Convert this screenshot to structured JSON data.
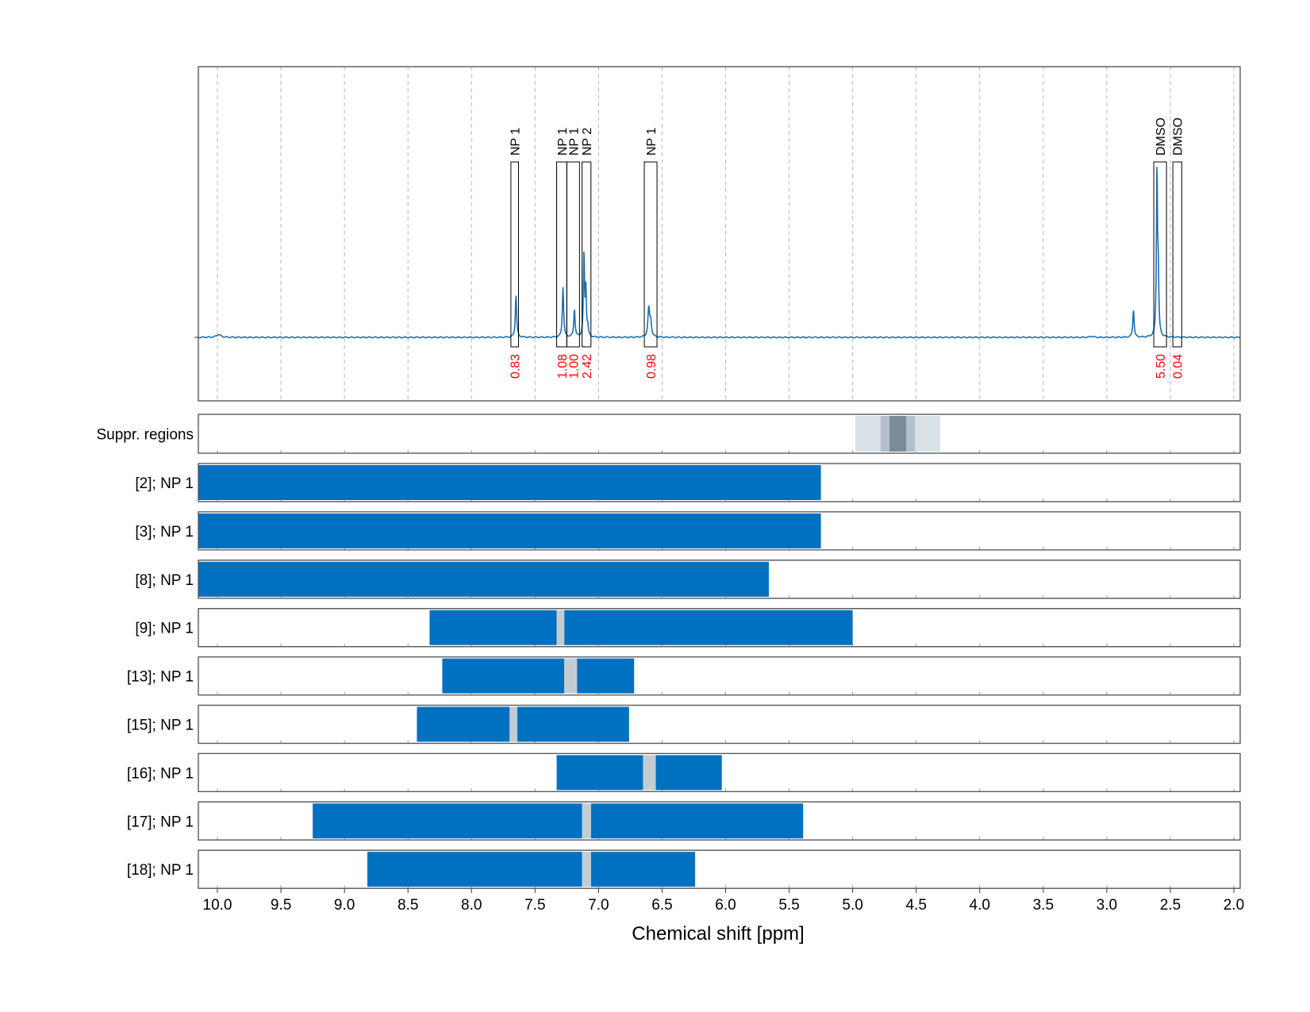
{
  "chart_data": {
    "type": "nmr-spectrum-with-range-bars",
    "xlabel": "Chemical shift [ppm]",
    "xlim": [
      10.15,
      1.95
    ],
    "xticks": [
      "10.0",
      "9.5",
      "9.0",
      "8.5",
      "8.0",
      "7.5",
      "7.0",
      "6.5",
      "6.0",
      "5.5",
      "5.0",
      "4.5",
      "4.0",
      "3.5",
      "3.0",
      "2.5",
      "2.0"
    ],
    "grid": true,
    "colors": {
      "spectrum": "#1a6fb5",
      "bar": "#0070c0",
      "gap": "#c3ccd3",
      "integral": "#ff0000",
      "frame": "#555555"
    },
    "spectrum": {
      "baseline": 0,
      "peaks": [
        {
          "ppm": 9.99,
          "height": 0.015,
          "width": 0.02
        },
        {
          "ppm": 7.65,
          "height": 0.23,
          "width": 0.006
        },
        {
          "ppm": 7.28,
          "height": 0.27,
          "width": 0.006
        },
        {
          "ppm": 7.19,
          "height": 0.15,
          "width": 0.006
        },
        {
          "ppm": 7.115,
          "height": 0.45,
          "width": 0.005
        },
        {
          "ppm": 7.1,
          "height": 0.25,
          "width": 0.005
        },
        {
          "ppm": 7.085,
          "height": 0.05,
          "width": 0.005
        },
        {
          "ppm": 6.605,
          "height": 0.15,
          "width": 0.008
        },
        {
          "ppm": 6.59,
          "height": 0.08,
          "width": 0.008
        },
        {
          "ppm": 3.12,
          "height": 0.008,
          "width": 0.01
        },
        {
          "ppm": 2.79,
          "height": 0.15,
          "width": 0.006
        },
        {
          "ppm": 2.605,
          "height": 0.9,
          "width": 0.005
        },
        {
          "ppm": 2.595,
          "height": 0.3,
          "width": 0.005
        }
      ]
    },
    "integral_regions": [
      {
        "label": "NP 1",
        "start": 7.69,
        "end": 7.63,
        "value": "0.83"
      },
      {
        "label": "NP 1",
        "start": 7.33,
        "end": 7.25,
        "value": "1.08"
      },
      {
        "label": "NP 1",
        "start": 7.25,
        "end": 7.15,
        "value": "1.00"
      },
      {
        "label": "NP 2",
        "start": 7.13,
        "end": 7.06,
        "value": "2.42"
      },
      {
        "label": "NP 1",
        "start": 6.64,
        "end": 6.54,
        "value": "0.98"
      },
      {
        "label": "DMSO",
        "start": 2.63,
        "end": 2.53,
        "value": "5.50"
      },
      {
        "label": "DMSO",
        "start": 2.48,
        "end": 2.41,
        "value": "0.04"
      }
    ],
    "suppression": {
      "label": "Suppr. regions",
      "bands": [
        {
          "start": 4.98,
          "end": 4.31,
          "shade": "#dae2e8"
        },
        {
          "start": 4.78,
          "end": 4.51,
          "shade": "#b3bfc9"
        },
        {
          "start": 4.71,
          "end": 4.58,
          "shade": "#7b8c98"
        }
      ]
    },
    "rows": [
      {
        "label": "[2]; NP 1",
        "segments": [
          [
            10.15,
            5.25
          ]
        ],
        "gaps": []
      },
      {
        "label": "[3]; NP 1",
        "segments": [
          [
            10.15,
            5.25
          ]
        ],
        "gaps": []
      },
      {
        "label": "[8]; NP 1",
        "segments": [
          [
            10.15,
            5.66
          ]
        ],
        "gaps": []
      },
      {
        "label": "[9]; NP 1",
        "segments": [
          [
            8.33,
            7.33
          ],
          [
            7.27,
            5.0
          ]
        ],
        "gaps": [
          [
            7.33,
            7.27
          ]
        ]
      },
      {
        "label": "[13]; NP 1",
        "segments": [
          [
            8.23,
            7.27
          ],
          [
            7.17,
            6.72
          ]
        ],
        "gaps": [
          [
            7.27,
            7.17
          ]
        ]
      },
      {
        "label": "[15]; NP 1",
        "segments": [
          [
            8.43,
            7.7
          ],
          [
            7.64,
            6.76
          ]
        ],
        "gaps": [
          [
            7.7,
            7.64
          ]
        ]
      },
      {
        "label": "[16]; NP 1",
        "segments": [
          [
            7.33,
            6.65
          ],
          [
            6.55,
            6.03
          ]
        ],
        "gaps": [
          [
            6.65,
            6.55
          ]
        ]
      },
      {
        "label": "[17]; NP 1",
        "segments": [
          [
            9.25,
            7.13
          ],
          [
            7.06,
            5.39
          ]
        ],
        "gaps": [
          [
            7.13,
            7.06
          ]
        ]
      },
      {
        "label": "[18]; NP 1",
        "segments": [
          [
            8.82,
            7.13
          ],
          [
            7.06,
            6.24
          ]
        ],
        "gaps": [
          [
            7.13,
            7.06
          ]
        ]
      }
    ]
  }
}
